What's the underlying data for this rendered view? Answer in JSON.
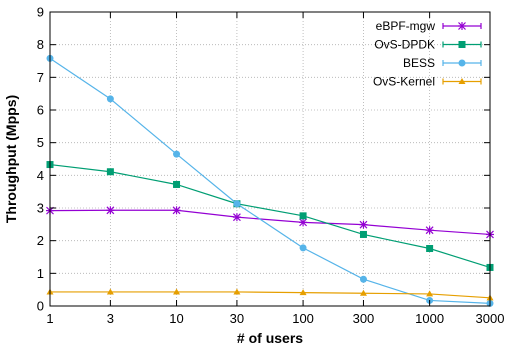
{
  "chart_data": {
    "type": "line",
    "xlabel": "# of users",
    "ylabel": "Throughput (Mpps)",
    "x": [
      "1",
      "3",
      "10",
      "30",
      "100",
      "300",
      "1000",
      "3000"
    ],
    "ylim": [
      0,
      9
    ],
    "yticks": [
      "0",
      "1",
      "2",
      "3",
      "4",
      "5",
      "6",
      "7",
      "8",
      "9"
    ],
    "grid": true,
    "legend_position": "top-right",
    "series": [
      {
        "name": "eBPF-mgw",
        "color": "#9400d3",
        "marker": "cross",
        "values": [
          2.92,
          2.93,
          2.93,
          2.72,
          2.56,
          2.49,
          2.32,
          2.19
        ]
      },
      {
        "name": "OvS-DPDK",
        "color": "#009e73",
        "marker": "square",
        "values": [
          4.33,
          4.11,
          3.72,
          3.13,
          2.76,
          2.19,
          1.76,
          1.18
        ]
      },
      {
        "name": "BESS",
        "color": "#56b4e9",
        "marker": "circle",
        "values": [
          7.58,
          6.34,
          4.65,
          3.13,
          1.78,
          0.82,
          0.17,
          0.08
        ]
      },
      {
        "name": "OvS-Kernel",
        "color": "#e69f00",
        "marker": "triangle",
        "values": [
          0.43,
          0.43,
          0.43,
          0.43,
          0.41,
          0.39,
          0.37,
          0.25
        ]
      }
    ]
  }
}
